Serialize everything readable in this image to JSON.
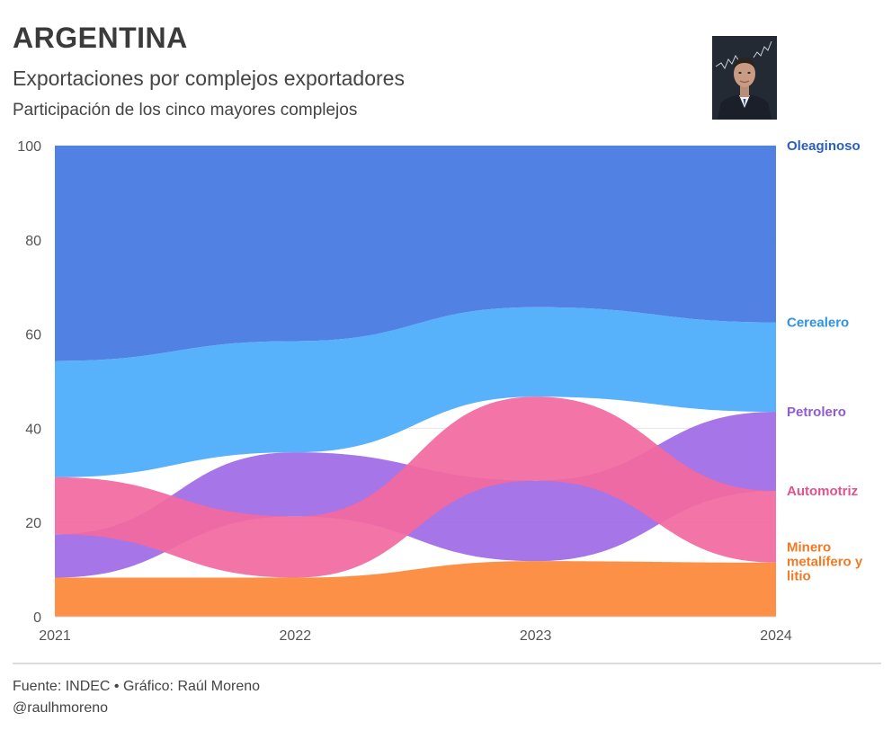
{
  "header": {
    "title": "ARGENTINA",
    "subtitle": "Exportaciones por complejos exportadores",
    "subsubtitle": "Participación de los cinco mayores complejos"
  },
  "footer": {
    "source": "Fuente: INDEC • Gráfico: Raúl Moreno",
    "handle": "@raulhmoreno"
  },
  "chart_data": {
    "type": "area",
    "subtype": "bump-area / ranked stacked area",
    "title": "ARGENTINA",
    "subtitle": "Exportaciones por complejos exportadores",
    "caption": "Participación de los cinco mayores complejos",
    "xlabel": "",
    "ylabel": "",
    "x": [
      "2021",
      "2022",
      "2023",
      "2024"
    ],
    "ylim": [
      0,
      100
    ],
    "yticks": [
      "0",
      "20",
      "40",
      "60",
      "80",
      "100"
    ],
    "grid": true,
    "legend": "right-side direct labels",
    "series": [
      {
        "name": "Oleaginoso",
        "color": "#4479e1",
        "lower": [
          54.3,
          58.5,
          65.7,
          62.5
        ],
        "upper": [
          100,
          100,
          100,
          100
        ]
      },
      {
        "name": "Cerealero",
        "color": "#4aabfb",
        "lower": [
          29.6,
          34.9,
          46.7,
          43.5
        ],
        "upper": [
          54.3,
          58.5,
          65.7,
          62.5
        ]
      },
      {
        "name": "Petrolero",
        "color": "#9f6be6",
        "lower": [
          8.3,
          21.3,
          11.8,
          26.7
        ],
        "upper": [
          17.5,
          34.9,
          28.9,
          43.5
        ]
      },
      {
        "name": "Automotriz",
        "color": "#f2699f",
        "lower": [
          17.5,
          8.3,
          28.9,
          11.5
        ],
        "upper": [
          29.6,
          21.3,
          46.7,
          26.7
        ]
      },
      {
        "name": "Minero metalífero y litio",
        "color": "#fb8838",
        "lower": [
          0,
          0,
          0,
          0
        ],
        "upper": [
          8.3,
          8.3,
          11.8,
          11.5
        ]
      }
    ],
    "labels": [
      {
        "series": "Oleaginoso",
        "lines": [
          "Oleaginoso"
        ],
        "color": "#2b5fbf",
        "y": 100
      },
      {
        "series": "Cerealero",
        "lines": [
          "Cerealero"
        ],
        "color": "#2d93e3",
        "y": 62.5
      },
      {
        "series": "Petrolero",
        "lines": [
          "Petrolero"
        ],
        "color": "#8f5ad9",
        "y": 43.5
      },
      {
        "series": "Automotriz",
        "lines": [
          "Automotriz"
        ],
        "color": "#e5518c",
        "y": 26.7
      },
      {
        "series": "Minero metalífero y litio",
        "lines": [
          "Minero",
          "metalífero y",
          "litio"
        ],
        "color": "#f07a24",
        "y": 11.5
      }
    ]
  }
}
